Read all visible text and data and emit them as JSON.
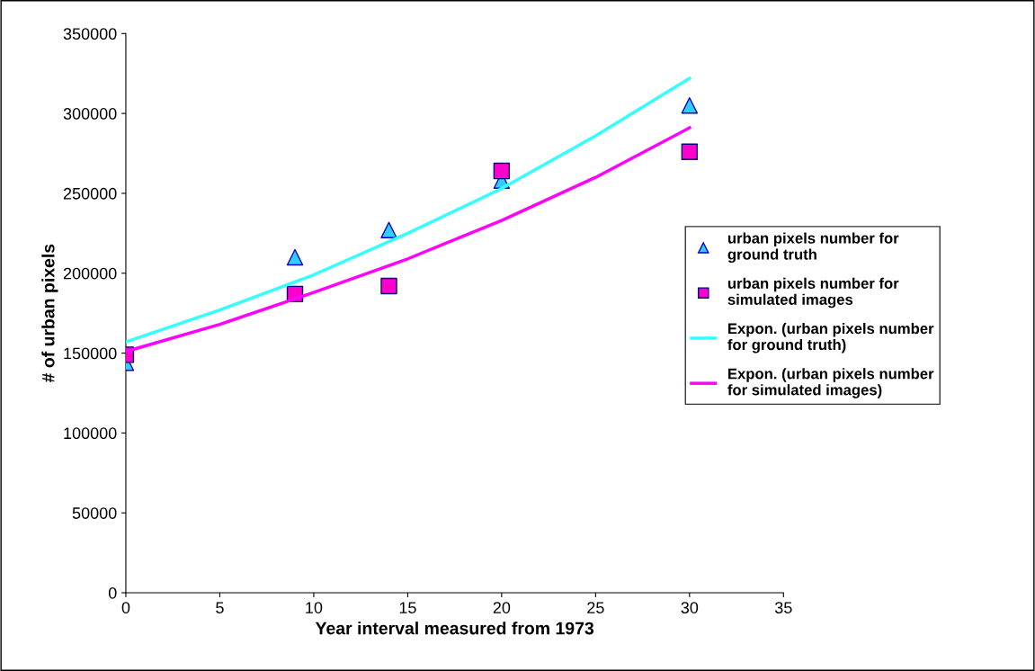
{
  "chart_data": {
    "type": "scatter",
    "xlabel": "Year interval measured from 1973",
    "ylabel": "# of urban pixels",
    "xlim": [
      0,
      35
    ],
    "xticks": [
      0,
      5,
      10,
      15,
      20,
      25,
      30,
      35
    ],
    "ylim": [
      0,
      350000
    ],
    "yticks": [
      0,
      50000,
      100000,
      150000,
      200000,
      250000,
      300000,
      350000
    ],
    "grid": false,
    "legend": "right",
    "series": [
      {
        "name": "urban pixels number for\nground truth",
        "marker": "triangle",
        "color": "#33ccff",
        "x": [
          0,
          9,
          14,
          20,
          30
        ],
        "values": [
          144000,
          210000,
          227000,
          258000,
          305000
        ]
      },
      {
        "name": "urban pixels number for\nsimulated images",
        "marker": "square",
        "color": "#ff00cc",
        "x": [
          0,
          9,
          14,
          20,
          30
        ],
        "values": [
          149000,
          187000,
          192000,
          264000,
          276000
        ]
      },
      {
        "name": "Expon. (urban pixels number\nfor ground truth)",
        "type": "line",
        "marker": "none",
        "color": "#33ffff",
        "x": [
          0,
          5,
          10,
          15,
          20,
          25,
          30
        ],
        "values": [
          157000,
          177000,
          199000,
          225000,
          253000,
          286000,
          322000
        ]
      },
      {
        "name": "Expon. (urban pixels number\nfor simulated images)",
        "type": "line",
        "marker": "none",
        "color": "#ff00ff",
        "x": [
          0,
          5,
          10,
          15,
          20,
          25,
          30
        ],
        "values": [
          151000,
          168000,
          188000,
          209000,
          233000,
          260000,
          291000
        ]
      }
    ]
  }
}
